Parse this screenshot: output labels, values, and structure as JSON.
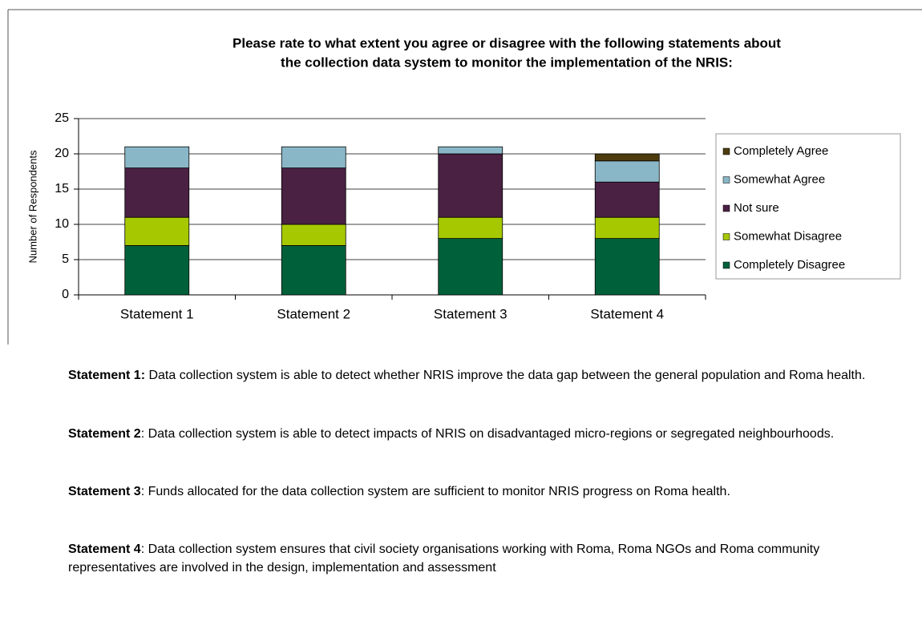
{
  "chart_data": {
    "type": "stacked_bar",
    "title": [
      "Please rate to what extent you agree or disagree with the following statements about",
      "the collection data system to monitor the implementation of the NRIS:"
    ],
    "y_label": "Number of Respondents",
    "categories": [
      "Statement 1",
      "Statement 2",
      "Statement 3",
      "Statement 4"
    ],
    "series": [
      {
        "name": "Completely Disagree",
        "color": "#00603a",
        "values": [
          7,
          7,
          8,
          8
        ]
      },
      {
        "name": "Somewhat Disagree",
        "color": "#a6c800",
        "values": [
          4,
          3,
          3,
          3
        ]
      },
      {
        "name": "Not sure",
        "color": "#4a2142",
        "values": [
          7,
          8,
          9,
          5
        ]
      },
      {
        "name": "Somewhat Agree",
        "color": "#8ab7c7",
        "values": [
          3,
          3,
          1,
          3
        ]
      },
      {
        "name": "Completely Agree",
        "color": "#4d3c0f",
        "values": [
          0,
          0,
          0,
          1
        ]
      }
    ],
    "ylim": [
      0,
      25
    ],
    "yticks": [
      0,
      5,
      10,
      15,
      20,
      25
    ],
    "grid": true,
    "legend": "right"
  },
  "statements": [
    {
      "label": "Statement 1:",
      "text": " Data collection system is able to detect whether NRIS  improve the data gap between the general population and Roma health."
    },
    {
      "label": "Statement 2",
      "text": ": Data collection system is able to detect impacts of NRIS on disadvantaged micro-regions or segregated neighbourhoods."
    },
    {
      "label": "Statement 3",
      "text": ": Funds  allocated for the data collection system are sufficient to monitor NRIS progress on Roma health."
    },
    {
      "label": "Statement 4",
      "text": ": Data collection system ensures that civil society organisations working with Roma, Roma NGOs and Roma community  representatives are involved  in the design, implementation  and assessment"
    }
  ]
}
